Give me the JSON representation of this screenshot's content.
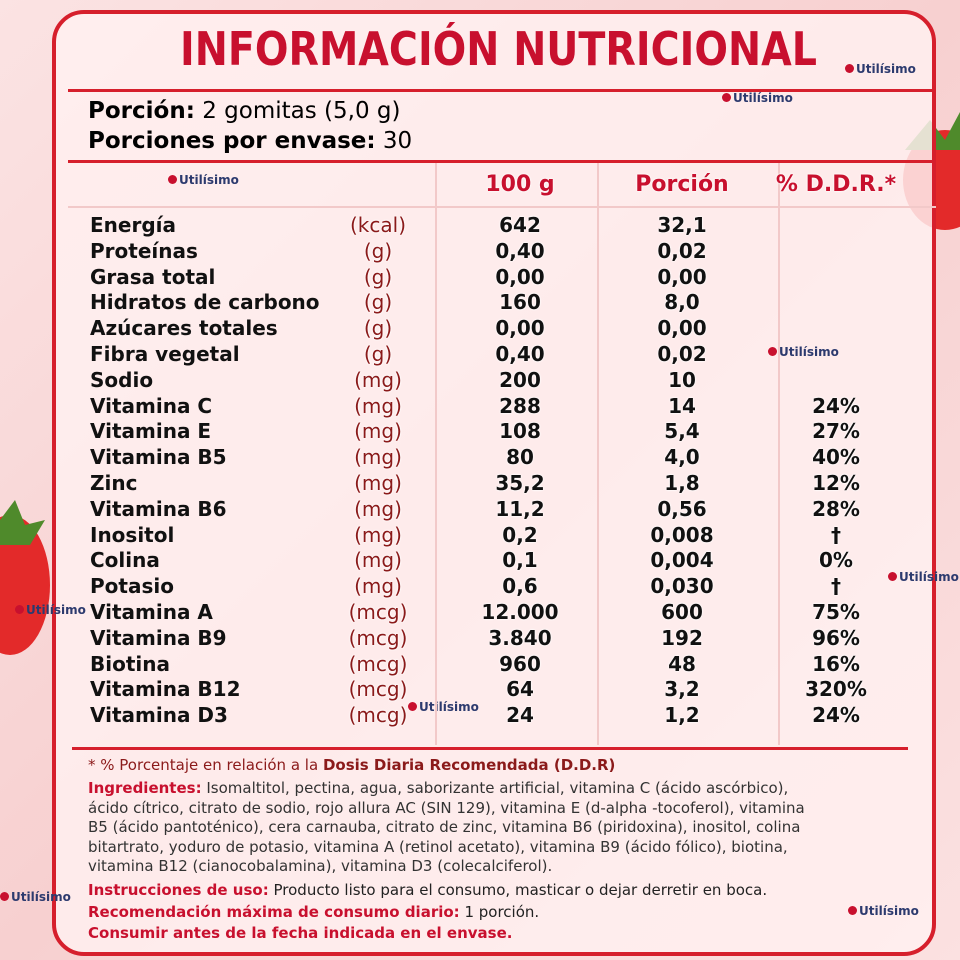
{
  "brand": "Utilísimo",
  "header": {
    "title": "INFORMACIÓN NUTRICIONAL"
  },
  "serving": {
    "size_label": "Porción:",
    "size": "2 gomitas (5,0 g)",
    "count_label": "Porciones por envase:",
    "count": "30"
  },
  "table": {
    "columns": [
      "100 g",
      "Porción",
      "% D.D.R.*"
    ],
    "rows": [
      [
        "Energía",
        "(kcal)",
        "642",
        "32,1",
        null
      ],
      [
        "Proteínas",
        "(g)",
        "0,40",
        "0,02",
        null
      ],
      [
        "Grasa total",
        "(g)",
        "0,00",
        "0,00",
        null
      ],
      [
        "Hidratos de carbono",
        "(g)",
        "160",
        "8,0",
        null
      ],
      [
        "Azúcares totales",
        "(g)",
        "0,00",
        "0,00",
        null
      ],
      [
        "Fibra vegetal",
        "(g)",
        "0,40",
        "0,02",
        null
      ],
      [
        "Sodio",
        "(mg)",
        "200",
        "10",
        null
      ],
      [
        "Vitamina C",
        "(mg)",
        "288",
        "14",
        "24%"
      ],
      [
        "Vitamina E",
        "(mg)",
        "108",
        "5,4",
        "27%"
      ],
      [
        "Vitamina B5",
        "(mg)",
        "80",
        "4,0",
        "40%"
      ],
      [
        "Zinc",
        "(mg)",
        "35,2",
        "1,8",
        "12%"
      ],
      [
        "Vitamina B6",
        "(mg)",
        "11,2",
        "0,56",
        "28%"
      ],
      [
        "Inositol",
        "(mg)",
        "0,2",
        "0,008",
        "†"
      ],
      [
        "Colina",
        "(mg)",
        "0,1",
        "0,004",
        "0%"
      ],
      [
        "Potasio",
        "(mg)",
        "0,6",
        "0,030",
        "†"
      ],
      [
        "Vitamina A",
        "(mcg)",
        "12.000",
        "600",
        "75%"
      ],
      [
        "Vitamina B9",
        "(mcg)",
        "3.840",
        "192",
        "96%"
      ],
      [
        "Biotina",
        "(mcg)",
        "960",
        "48",
        "16%"
      ],
      [
        "Vitamina B12",
        "(mcg)",
        "64",
        "3,2",
        "320%"
      ],
      [
        "Vitamina D3",
        "(mcg)",
        "24",
        "1,2",
        "24%"
      ]
    ]
  },
  "footnote": {
    "text": "* % Porcentaje en relación a la",
    "bold": "Dosis Diaria Recomendada (D.D.R)"
  },
  "ingredients": {
    "label": "Ingredientes:",
    "text": "Isomaltitol, pectina, agua, saborizante artificial, vitamina C (ácido ascórbico), ácido cítrico, citrato de sodio, rojo allura AC (SIN 129), vitamina E (d-alpha -tocoferol), vitamina B5 (ácido pantoténico), cera carnauba, citrato de zinc, vitamina B6 (piridoxina), inositol, colina bitartrato, yoduro de potasio, vitamina A (retinol acetato), vitamina B9 (ácido fólico), biotina, vitamina B12 (cianocobalamina), vitamina D3 (colecalciferol)."
  },
  "instructions": {
    "label": "Instrucciones de uso:",
    "text": "Producto listo para el consumo, masticar o dejar derretir en boca."
  },
  "max_daily": {
    "label": "Recomendación máxima de consumo diario:",
    "text": "1 porción."
  },
  "expiry": "Consumir antes de la fecha indicada en el envase."
}
